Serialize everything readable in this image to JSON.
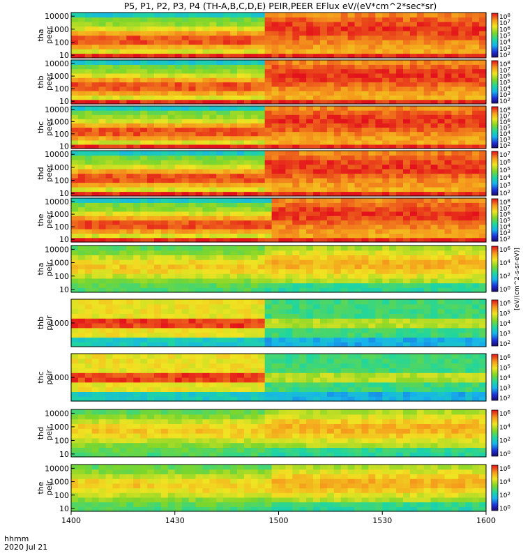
{
  "title": "P5, P1, P2, P3, P4 (TH-A,B,C,D,E) PEIR,PEER EFlux eV/(eV*cm^2*sec*sr)",
  "x_axis": {
    "label": "hhmm",
    "date": "2020 Jul 21",
    "ticks": [
      "1400",
      "1430",
      "1500",
      "1530",
      "1600"
    ]
  },
  "colorbar_unit": "[eV/(cm^2-s-sr-eV)]",
  "chart_data": [
    {
      "type": "heatmap",
      "probe": "tha",
      "product": "peer",
      "ylabel": [
        "tha",
        "peer"
      ],
      "yscale": "log",
      "y_ticks": [
        "10",
        "100",
        "1000",
        "10000"
      ],
      "colorbar_ticks": [
        "10^2",
        "10^3",
        "10^4",
        "10^5",
        "10^6",
        "10^7",
        "10^8"
      ],
      "boundary_time": "1455"
    },
    {
      "type": "heatmap",
      "probe": "thb",
      "product": "peer",
      "ylabel": [
        "thb",
        "peer"
      ],
      "yscale": "log",
      "y_ticks": [
        "10",
        "100",
        "1000",
        "10000"
      ],
      "colorbar_ticks": [
        "10^2",
        "10^3",
        "10^4",
        "10^5",
        "10^6",
        "10^7",
        "10^8"
      ],
      "boundary_time": "1455"
    },
    {
      "type": "heatmap",
      "probe": "thc",
      "product": "peer",
      "ylabel": [
        "thc",
        "peer"
      ],
      "yscale": "log",
      "y_ticks": [
        "10",
        "100",
        "1000",
        "10000"
      ],
      "colorbar_ticks": [
        "10^2",
        "10^3",
        "10^4",
        "10^5",
        "10^6",
        "10^7",
        "10^8"
      ],
      "boundary_time": "1455"
    },
    {
      "type": "heatmap",
      "probe": "thd",
      "product": "peer",
      "ylabel": [
        "thd",
        "peer"
      ],
      "yscale": "log",
      "y_ticks": [
        "10",
        "100",
        "1000",
        "10000"
      ],
      "colorbar_ticks": [
        "10^2",
        "10^3",
        "10^4",
        "10^5",
        "10^6",
        "10^7"
      ],
      "boundary_time": "1455"
    },
    {
      "type": "heatmap",
      "probe": "the",
      "product": "peer",
      "ylabel": [
        "the",
        "peer"
      ],
      "yscale": "log",
      "y_ticks": [
        "10",
        "100",
        "1000",
        "10000"
      ],
      "colorbar_ticks": [
        "10^2",
        "10^3",
        "10^4",
        "10^5",
        "10^6",
        "10^7",
        "10^8"
      ],
      "boundary_time": "1457"
    },
    {
      "type": "heatmap",
      "probe": "tha",
      "product": "peir",
      "ylabel": [
        "tha",
        "peir"
      ],
      "yscale": "log",
      "y_ticks": [
        "10",
        "100",
        "1000",
        "10000"
      ],
      "colorbar_ticks": [
        "10^0",
        "10^2",
        "10^4",
        "10^6"
      ],
      "boundary_time": "1455"
    },
    {
      "type": "heatmap",
      "probe": "thb",
      "product": "peir",
      "ylabel": [
        "thb",
        "peir"
      ],
      "yscale": "log",
      "y_ticks": [
        "1000"
      ],
      "colorbar_ticks": [
        "10^2",
        "10^3",
        "10^4",
        "10^5",
        "10^6"
      ],
      "boundary_time": "1455"
    },
    {
      "type": "heatmap",
      "probe": "thc",
      "product": "peir",
      "ylabel": [
        "thc",
        "peir"
      ],
      "yscale": "log",
      "y_ticks": [
        "1000"
      ],
      "colorbar_ticks": [
        "10^2",
        "10^3",
        "10^4",
        "10^5",
        "10^6"
      ],
      "boundary_time": "1455"
    },
    {
      "type": "heatmap",
      "probe": "thd",
      "product": "peir",
      "ylabel": [
        "thd",
        "peir"
      ],
      "yscale": "log",
      "y_ticks": [
        "10",
        "100",
        "1000",
        "10000"
      ],
      "colorbar_ticks": [
        "10^0",
        "10^2",
        "10^4",
        "10^6"
      ],
      "boundary_time": "1455"
    },
    {
      "type": "heatmap",
      "probe": "the",
      "product": "peir",
      "ylabel": [
        "the",
        "peir"
      ],
      "yscale": "log",
      "y_ticks": [
        "10",
        "100",
        "1000",
        "10000"
      ],
      "colorbar_ticks": [
        "10^0",
        "10^2",
        "10^4",
        "10^6"
      ],
      "boundary_time": "1457"
    }
  ]
}
